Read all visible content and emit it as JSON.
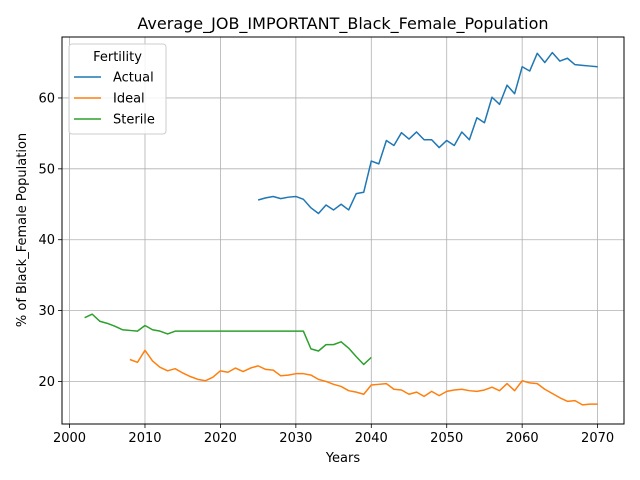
{
  "chart_data": {
    "type": "line",
    "title": "Average_JOB_IMPORTANT_Black_Female_Population",
    "xlabel": "Years",
    "ylabel": "% of Black_Female Population",
    "xlim": [
      1999,
      2073.5
    ],
    "ylim": [
      14,
      68.6
    ],
    "xticks": [
      2000,
      2010,
      2020,
      2030,
      2040,
      2050,
      2060,
      2070
    ],
    "yticks": [
      20,
      30,
      40,
      50,
      60
    ],
    "grid": true,
    "legend": {
      "title": "Fertility",
      "position": "upper-left"
    },
    "series": [
      {
        "name": "Actual",
        "color": "#1f77b4",
        "x": [
          2025,
          2026,
          2027,
          2028,
          2029,
          2030,
          2031,
          2032,
          2033,
          2034,
          2035,
          2036,
          2037,
          2038,
          2039,
          2040,
          2041,
          2042,
          2043,
          2044,
          2045,
          2046,
          2047,
          2048,
          2049,
          2050,
          2051,
          2052,
          2053,
          2054,
          2055,
          2056,
          2057,
          2058,
          2059,
          2060,
          2061,
          2062,
          2063,
          2064,
          2065,
          2066,
          2067,
          2068,
          2069,
          2070
        ],
        "values": [
          45.6,
          45.9,
          46.1,
          45.8,
          46.0,
          46.1,
          45.7,
          44.5,
          43.7,
          44.9,
          44.2,
          45.0,
          44.2,
          46.5,
          46.7,
          51.1,
          50.7,
          54.0,
          53.3,
          55.1,
          54.2,
          55.2,
          54.1,
          54.1,
          53.0,
          54.0,
          53.3,
          55.2,
          54.1,
          57.2,
          56.5,
          60.1,
          59.1,
          61.8,
          60.6,
          64.4,
          63.8,
          66.3,
          65.0,
          66.4,
          65.2,
          65.6,
          64.7,
          64.6,
          64.5,
          64.4
        ]
      },
      {
        "name": "Ideal",
        "color": "#ff7f0e",
        "x": [
          2008,
          2009,
          2010,
          2011,
          2012,
          2013,
          2014,
          2015,
          2016,
          2017,
          2018,
          2019,
          2020,
          2021,
          2022,
          2023,
          2024,
          2025,
          2026,
          2027,
          2028,
          2029,
          2030,
          2031,
          2032,
          2033,
          2034,
          2035,
          2036,
          2037,
          2038,
          2039,
          2040,
          2041,
          2042,
          2043,
          2044,
          2045,
          2046,
          2047,
          2048,
          2049,
          2050,
          2051,
          2052,
          2053,
          2054,
          2055,
          2056,
          2057,
          2058,
          2059,
          2060,
          2061,
          2062,
          2063,
          2064,
          2065,
          2066,
          2067,
          2068,
          2069,
          2070
        ],
        "values": [
          23.1,
          22.7,
          24.4,
          22.9,
          22.0,
          21.5,
          21.8,
          21.2,
          20.7,
          20.3,
          20.1,
          20.6,
          21.5,
          21.3,
          21.9,
          21.4,
          21.9,
          22.2,
          21.7,
          21.6,
          20.8,
          20.9,
          21.1,
          21.1,
          20.9,
          20.3,
          20.0,
          19.6,
          19.3,
          18.7,
          18.5,
          18.2,
          19.5,
          19.6,
          19.7,
          18.9,
          18.8,
          18.2,
          18.5,
          17.9,
          18.6,
          18.0,
          18.6,
          18.8,
          18.9,
          18.7,
          18.6,
          18.8,
          19.2,
          18.7,
          19.7,
          18.7,
          20.1,
          19.8,
          19.7,
          18.9,
          18.3,
          17.7,
          17.2,
          17.3,
          16.7,
          16.8,
          16.8
        ]
      },
      {
        "name": "Sterile",
        "color": "#2ca02c",
        "x": [
          2002,
          2003,
          2004,
          2005,
          2006,
          2007,
          2008,
          2009,
          2010,
          2011,
          2012,
          2013,
          2014,
          2015,
          2016,
          2017,
          2018,
          2019,
          2020,
          2021,
          2022,
          2023,
          2024,
          2025,
          2026,
          2027,
          2028,
          2029,
          2030,
          2031,
          2032,
          2033,
          2034,
          2035,
          2036,
          2037,
          2038,
          2039,
          2040
        ],
        "values": [
          29.0,
          29.5,
          28.5,
          28.2,
          27.8,
          27.3,
          27.2,
          27.1,
          27.9,
          27.3,
          27.1,
          26.7,
          27.1,
          27.1,
          27.1,
          27.1,
          27.1,
          27.1,
          27.1,
          27.1,
          27.1,
          27.1,
          27.1,
          27.1,
          27.1,
          27.1,
          27.1,
          27.1,
          27.1,
          27.1,
          24.6,
          24.3,
          25.2,
          25.2,
          25.6,
          24.7,
          23.5,
          22.4,
          23.4
        ]
      }
    ]
  }
}
